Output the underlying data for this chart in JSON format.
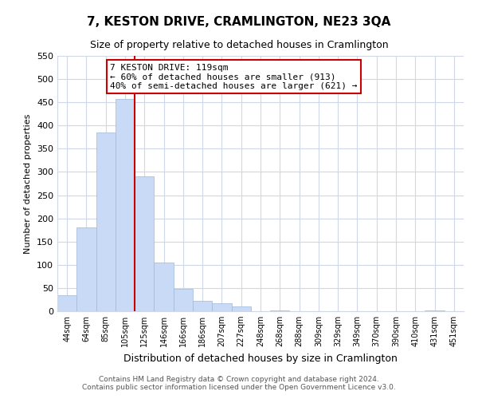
{
  "title": "7, KESTON DRIVE, CRAMLINGTON, NE23 3QA",
  "subtitle": "Size of property relative to detached houses in Cramlington",
  "xlabel": "Distribution of detached houses by size in Cramlington",
  "ylabel": "Number of detached properties",
  "bar_labels": [
    "44sqm",
    "64sqm",
    "85sqm",
    "105sqm",
    "125sqm",
    "146sqm",
    "166sqm",
    "186sqm",
    "207sqm",
    "227sqm",
    "248sqm",
    "268sqm",
    "288sqm",
    "309sqm",
    "329sqm",
    "349sqm",
    "370sqm",
    "390sqm",
    "410sqm",
    "431sqm",
    "451sqm"
  ],
  "bar_values": [
    35,
    181,
    385,
    458,
    290,
    104,
    48,
    22,
    18,
    10,
    0,
    1,
    0,
    0,
    0,
    0,
    0,
    0,
    0,
    1,
    0
  ],
  "bar_color": "#c8daf5",
  "bar_edge_color": "#a0b8d8",
  "vline_after_index": 3,
  "vline_color": "#cc0000",
  "annotation_title": "7 KESTON DRIVE: 119sqm",
  "annotation_line1": "← 60% of detached houses are smaller (913)",
  "annotation_line2": "40% of semi-detached houses are larger (621) →",
  "annotation_box_color": "#ffffff",
  "annotation_box_edge": "#cc0000",
  "ylim": [
    0,
    550
  ],
  "yticks": [
    0,
    50,
    100,
    150,
    200,
    250,
    300,
    350,
    400,
    450,
    500,
    550
  ],
  "footer_line1": "Contains HM Land Registry data © Crown copyright and database right 2024.",
  "footer_line2": "Contains public sector information licensed under the Open Government Licence v3.0.",
  "background_color": "#ffffff",
  "grid_color": "#d0d8e8",
  "title_fontsize": 11,
  "subtitle_fontsize": 9,
  "xlabel_fontsize": 9,
  "ylabel_fontsize": 8,
  "tick_fontsize": 8,
  "xtick_fontsize": 7,
  "footer_fontsize": 6.5,
  "annotation_fontsize": 8
}
